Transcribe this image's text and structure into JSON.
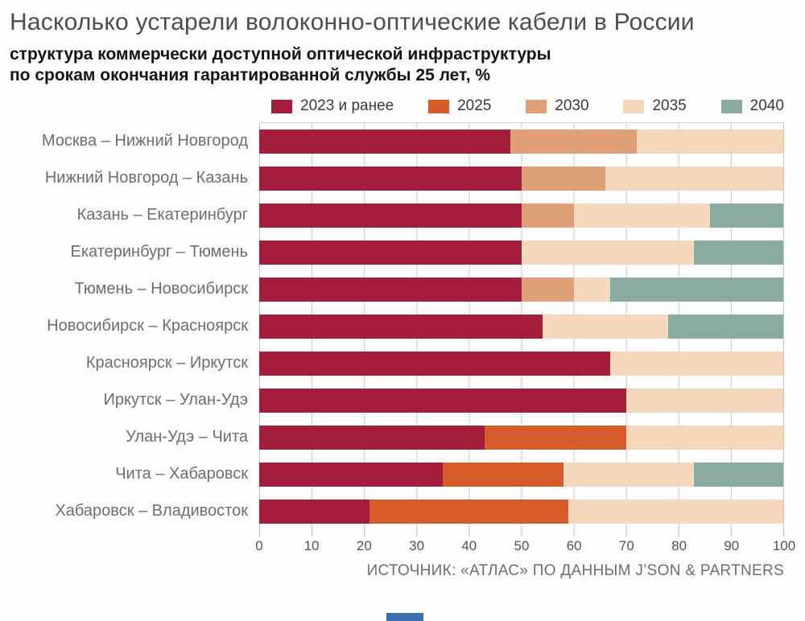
{
  "header": {
    "title": "Насколько устарели волоконно-оптические кабели в России",
    "subtitle_line1": "структура коммерчески доступной оптической инфраструктуры",
    "subtitle_line2": "по срокам окончания гарантированной службы 25 лет, %"
  },
  "legend": [
    {
      "label": "2023 и ранее",
      "color": "#a41e3c"
    },
    {
      "label": "2025",
      "color": "#d65c29"
    },
    {
      "label": "2030",
      "color": "#dfa077"
    },
    {
      "label": "2035",
      "color": "#f5d8bc"
    },
    {
      "label": "2040",
      "color": "#8aab9f"
    }
  ],
  "chart_data": {
    "type": "bar",
    "orientation": "horizontal",
    "stacked": true,
    "title": "Насколько устарели волоконно-оптические кабели в России",
    "subtitle": "структура коммерчески доступной оптической инфраструктуры по срокам окончания гарантированной службы 25 лет, %",
    "unit": "%",
    "xlim": [
      0,
      100
    ],
    "x_ticks": [
      0,
      10,
      20,
      30,
      40,
      50,
      60,
      70,
      80,
      90,
      100
    ],
    "grid": "vertical",
    "legend_position": "top",
    "categories": [
      "Москва – Нижний Новгород",
      "Нижний Новгород – Казань",
      "Казань – Екатеринбург",
      "Екатеринбург – Тюмень",
      "Тюмень – Новосибирск",
      "Новосибирск – Красноярск",
      "Красноярск – Иркутск",
      "Иркутск – Улан-Удэ",
      "Улан-Удэ – Чита",
      "Чита – Хабаровск",
      "Хабаровск – Владивосток"
    ],
    "series": [
      {
        "name": "2023 и ранее",
        "color": "#a41e3c",
        "values": [
          48,
          50,
          50,
          50,
          50,
          54,
          67,
          70,
          43,
          35,
          21
        ]
      },
      {
        "name": "2025",
        "color": "#d65c29",
        "values": [
          0,
          0,
          0,
          0,
          0,
          0,
          0,
          0,
          27,
          23,
          38
        ]
      },
      {
        "name": "2030",
        "color": "#dfa077",
        "values": [
          24,
          16,
          10,
          0,
          10,
          0,
          0,
          0,
          0,
          0,
          0
        ]
      },
      {
        "name": "2035",
        "color": "#f5d8bc",
        "values": [
          28,
          34,
          26,
          33,
          7,
          24,
          33,
          30,
          30,
          25,
          41
        ]
      },
      {
        "name": "2040",
        "color": "#8aab9f",
        "values": [
          0,
          0,
          14,
          17,
          33,
          22,
          0,
          0,
          0,
          17,
          0
        ]
      }
    ]
  },
  "footer": {
    "source": "ИСТОЧНИК: «АТЛАС» ПО ДАННЫМ J’SON & PARTNERS",
    "accent_color": "#3a70b2"
  }
}
